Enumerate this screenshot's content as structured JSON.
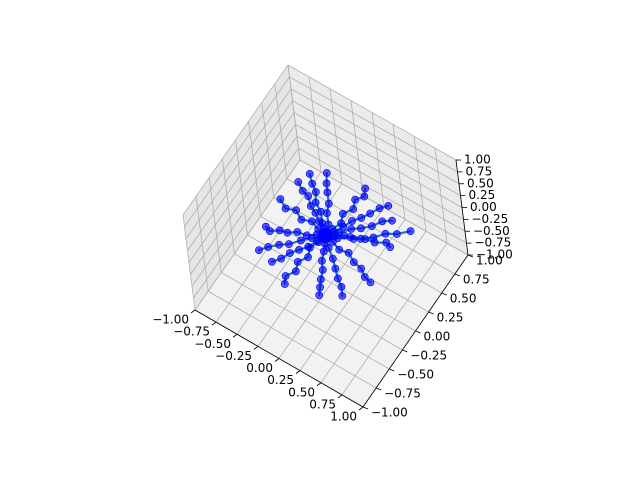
{
  "chart_data": {
    "type": "scatter",
    "projection": "3d",
    "title": "",
    "xlabel": "",
    "ylabel": "",
    "zlabel": "",
    "xlim": [
      -1.0,
      1.0
    ],
    "ylim": [
      -1.0,
      1.0
    ],
    "zlim": [
      -1.0,
      1.0
    ],
    "grid": true,
    "x_ticks": [
      "−1.00",
      "−0.75",
      "−0.50",
      "−0.25",
      "0.00",
      "0.25",
      "0.50",
      "0.75",
      "1.00"
    ],
    "y_ticks": [
      "−1.00",
      "−0.75",
      "−0.50",
      "−0.25",
      "0.00",
      "0.25",
      "0.50",
      "0.75",
      "1.00"
    ],
    "z_ticks": [
      "−1.00",
      "−0.75",
      "−0.50",
      "−0.25",
      "0.00",
      "0.25",
      "0.50",
      "0.75",
      "1.00"
    ],
    "center_point": {
      "x": 0.0,
      "y": 0.0,
      "z": 0.0
    },
    "series": [
      {
        "line_color": "#1f77b4",
        "marker_color": "#0000ff",
        "description_walks": [
          [
            [
              0,
              0
            ],
            [
              0.05,
              0.08
            ],
            [
              0.1,
              0.18
            ],
            [
              0.14,
              0.28
            ],
            [
              0.2,
              0.36
            ],
            [
              0.25,
              0.45
            ],
            [
              0.3,
              0.55
            ],
            [
              0.36,
              0.62
            ]
          ],
          [
            [
              0,
              0
            ],
            [
              0.08,
              0.04
            ],
            [
              0.16,
              0.1
            ],
            [
              0.26,
              0.12
            ],
            [
              0.36,
              0.18
            ],
            [
              0.46,
              0.2
            ],
            [
              0.56,
              0.26
            ],
            [
              0.62,
              0.24
            ]
          ],
          [
            [
              0,
              0
            ],
            [
              -0.06,
              0.06
            ],
            [
              -0.14,
              0.1
            ],
            [
              -0.22,
              0.16
            ],
            [
              -0.3,
              0.2
            ],
            [
              -0.38,
              0.28
            ],
            [
              -0.46,
              0.3
            ],
            [
              -0.55,
              0.36
            ]
          ],
          [
            [
              0,
              0
            ],
            [
              -0.08,
              -0.04
            ],
            [
              -0.16,
              -0.1
            ],
            [
              -0.26,
              -0.12
            ],
            [
              -0.34,
              -0.18
            ],
            [
              -0.42,
              -0.2
            ],
            [
              -0.5,
              -0.26
            ],
            [
              -0.56,
              -0.24
            ]
          ],
          [
            [
              0,
              0
            ],
            [
              0.04,
              -0.08
            ],
            [
              0.08,
              -0.16
            ],
            [
              0.12,
              -0.26
            ],
            [
              0.18,
              -0.34
            ],
            [
              0.22,
              -0.44
            ],
            [
              0.26,
              -0.52
            ],
            [
              0.3,
              -0.6
            ]
          ],
          [
            [
              0,
              0
            ],
            [
              -0.04,
              -0.1
            ],
            [
              -0.08,
              -0.2
            ],
            [
              -0.14,
              -0.28
            ],
            [
              -0.2,
              -0.36
            ],
            [
              -0.24,
              -0.46
            ],
            [
              -0.3,
              -0.54
            ]
          ],
          [
            [
              0,
              0
            ],
            [
              0.1,
              -0.02
            ],
            [
              0.2,
              -0.06
            ],
            [
              0.3,
              -0.04
            ],
            [
              0.4,
              -0.1
            ],
            [
              0.5,
              -0.12
            ],
            [
              0.58,
              -0.18
            ],
            [
              0.66,
              -0.2
            ]
          ],
          [
            [
              0,
              0
            ],
            [
              -0.1,
              0.02
            ],
            [
              -0.2,
              0.06
            ],
            [
              -0.3,
              0.02
            ],
            [
              -0.4,
              0.08
            ],
            [
              -0.5,
              0.04
            ],
            [
              -0.6,
              0.1
            ]
          ],
          [
            [
              0,
              0
            ],
            [
              0.02,
              0.1
            ],
            [
              0.06,
              0.2
            ],
            [
              0.02,
              0.3
            ],
            [
              0.08,
              0.4
            ],
            [
              0.04,
              0.5
            ],
            [
              0.1,
              0.58
            ],
            [
              0.06,
              0.66
            ]
          ],
          [
            [
              0,
              0
            ],
            [
              -0.02,
              -0.1
            ],
            [
              -0.06,
              -0.2
            ],
            [
              -0.02,
              -0.3
            ],
            [
              -0.08,
              -0.4
            ],
            [
              -0.04,
              -0.5
            ],
            [
              -0.1,
              -0.6
            ],
            [
              -0.06,
              -0.68
            ]
          ],
          [
            [
              0,
              0
            ],
            [
              0.1,
              0.1
            ],
            [
              0.18,
              0.2
            ],
            [
              0.26,
              0.26
            ],
            [
              0.34,
              0.34
            ],
            [
              0.4,
              0.44
            ],
            [
              0.48,
              0.5
            ]
          ],
          [
            [
              0,
              0
            ],
            [
              -0.1,
              -0.1
            ],
            [
              -0.18,
              -0.18
            ],
            [
              -0.26,
              -0.28
            ],
            [
              -0.34,
              -0.34
            ],
            [
              -0.42,
              -0.42
            ],
            [
              -0.48,
              -0.5
            ]
          ],
          [
            [
              0,
              0
            ],
            [
              0.1,
              -0.1
            ],
            [
              0.2,
              -0.18
            ],
            [
              0.28,
              -0.26
            ],
            [
              0.36,
              -0.34
            ],
            [
              0.44,
              -0.4
            ],
            [
              0.5,
              -0.48
            ]
          ],
          [
            [
              0,
              0
            ],
            [
              -0.1,
              0.1
            ],
            [
              -0.18,
              0.2
            ],
            [
              -0.28,
              0.26
            ],
            [
              -0.34,
              0.36
            ],
            [
              -0.42,
              0.42
            ],
            [
              -0.5,
              0.5
            ]
          ],
          [
            [
              0,
              0
            ],
            [
              0.12,
              0.04
            ],
            [
              0.22,
              0.12
            ],
            [
              0.32,
              0.16
            ],
            [
              0.42,
              0.24
            ],
            [
              0.5,
              0.34
            ],
            [
              0.6,
              0.4
            ],
            [
              0.7,
              0.5
            ]
          ],
          [
            [
              0,
              0
            ],
            [
              -0.04,
              0.12
            ],
            [
              -0.12,
              0.22
            ],
            [
              -0.16,
              0.32
            ],
            [
              -0.24,
              0.42
            ],
            [
              -0.3,
              0.5
            ],
            [
              -0.36,
              0.6
            ]
          ]
        ]
      }
    ]
  }
}
